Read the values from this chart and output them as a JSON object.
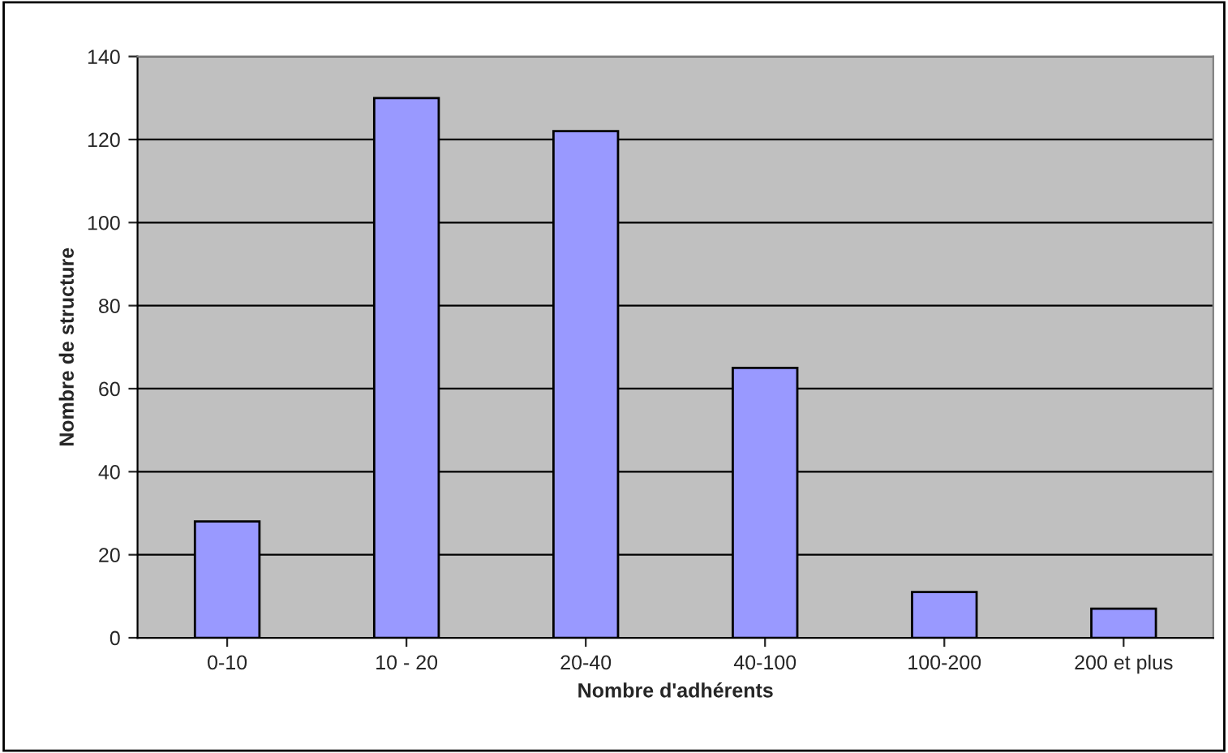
{
  "chart_data": {
    "type": "bar",
    "xlabel": "Nombre d'adhérents",
    "ylabel": "Nombre de structure",
    "categories": [
      "0-10",
      "10 - 20",
      "20-40",
      "40-100",
      "100-200",
      "200 et plus"
    ],
    "values": [
      28,
      130,
      122,
      65,
      11,
      7
    ],
    "color": "#9999ff",
    "ylim": [
      0,
      140
    ],
    "yticks": [
      0,
      20,
      40,
      60,
      80,
      100,
      120,
      140
    ],
    "grid": "y"
  }
}
